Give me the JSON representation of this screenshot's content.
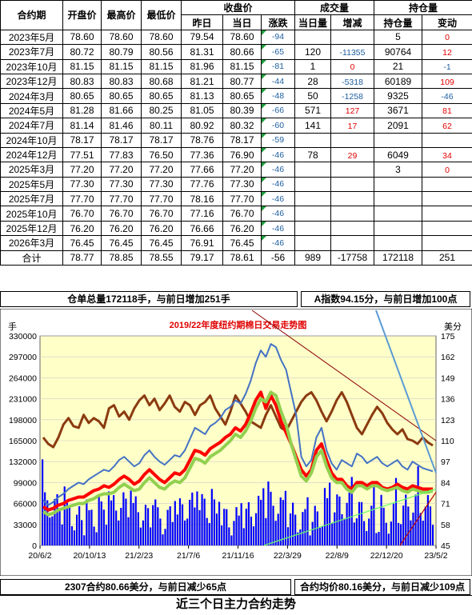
{
  "table": {
    "header": {
      "contract": "合约期",
      "open": "开盘价",
      "high": "最高价",
      "low": "最低价",
      "settle_group": "收盘价",
      "prev": "昨日",
      "today": "当日",
      "change": "涨跌",
      "volume_group": "成交量",
      "vol_today": "当日量",
      "vol_chg": "增减",
      "oi_group": "持仓量",
      "oi": "持仓量",
      "oi_chg": "变动"
    },
    "rows": [
      [
        "2023年5月",
        "78.60",
        "78.60",
        "78.60",
        "79.54",
        "78.60",
        "-94",
        "",
        "",
        "5",
        "0"
      ],
      [
        "2023年7月",
        "80.72",
        "80.79",
        "80.56",
        "81.31",
        "80.66",
        "-65",
        "120",
        "-11355",
        "90764",
        "12"
      ],
      [
        "2023年10月",
        "81.15",
        "81.15",
        "81.15",
        "81.96",
        "81.15",
        "-81",
        "1",
        "0",
        "21",
        "-1"
      ],
      [
        "2023年12月",
        "80.83",
        "80.83",
        "80.68",
        "81.21",
        "80.77",
        "-44",
        "28",
        "-5318",
        "60189",
        "109"
      ],
      [
        "2024年3月",
        "80.65",
        "80.65",
        "80.65",
        "81.13",
        "80.65",
        "-48",
        "50",
        "-1258",
        "9325",
        "-46"
      ],
      [
        "2024年5月",
        "81.28",
        "81.66",
        "80.25",
        "81.05",
        "80.39",
        "-66",
        "571",
        "127",
        "3671",
        "81"
      ],
      [
        "2024年7月",
        "81.14",
        "81.46",
        "80.11",
        "80.92",
        "80.32",
        "-60",
        "141",
        "17",
        "2091",
        "62"
      ],
      [
        "2024年10月",
        "78.17",
        "78.17",
        "78.17",
        "78.76",
        "78.17",
        "-59",
        "",
        "",
        "",
        ""
      ],
      [
        "2024年12月",
        "77.51",
        "77.83",
        "76.50",
        "77.36",
        "76.90",
        "-46",
        "78",
        "29",
        "6049",
        "34"
      ],
      [
        "2025年3月",
        "77.20",
        "77.20",
        "77.20",
        "77.66",
        "77.20",
        "-46",
        "",
        "",
        "3",
        "0"
      ],
      [
        "2025年5月",
        "77.30",
        "77.30",
        "77.30",
        "77.76",
        "77.30",
        "-46",
        "",
        "",
        "",
        ""
      ],
      [
        "2025年7月",
        "77.70",
        "77.70",
        "77.70",
        "78.16",
        "77.70",
        "-46",
        "",
        "",
        "",
        ""
      ],
      [
        "2025年10月",
        "76.70",
        "76.70",
        "76.70",
        "77.16",
        "76.70",
        "-46",
        "",
        "",
        "",
        ""
      ],
      [
        "2025年12月",
        "76.20",
        "76.20",
        "76.20",
        "76.66",
        "76.20",
        "-46",
        "",
        "",
        "",
        ""
      ],
      [
        "2026年3月",
        "76.45",
        "76.45",
        "76.45",
        "76.91",
        "76.45",
        "-46",
        "",
        "",
        "",
        ""
      ]
    ],
    "total": [
      "合计",
      "78.77",
      "78.85",
      "78.55",
      "79.17",
      "78.61",
      "-56",
      "989",
      "-17758",
      "172118",
      "251"
    ]
  },
  "summary": {
    "warehouse": "仓单总量172118手，与前日增加251手",
    "index": "A指数94.15分，与前日增加100点"
  },
  "chart_data": {
    "type": "line",
    "title": "2019/22年度纽约期棉日交易走势图",
    "left_unit": "手",
    "right_unit": "美分",
    "left_ticks": [
      0,
      33000,
      66000,
      99000,
      132000,
      165000,
      198000,
      231000,
      264000,
      297000,
      330000
    ],
    "right_ticks": [
      45,
      58,
      71,
      84,
      97,
      110,
      123,
      136,
      149,
      162,
      175
    ],
    "x_labels": [
      "20/6/2",
      "20/10/13",
      "21/2/23",
      "21/7/6",
      "21/11/16",
      "22/3/29",
      "22/8/9",
      "22/12/20",
      "23/5/2"
    ],
    "ylim_left": [
      0,
      330000
    ],
    "ylim_right": [
      45,
      175
    ],
    "background": "#ffffc8",
    "colors": {
      "brown": "#8b3a0f",
      "blue": "#4472c4",
      "red": "#ff0000",
      "green": "#92d050",
      "bars": "#0000ff",
      "title": "#e00000"
    },
    "series": [
      {
        "axis": "right",
        "color": "brown",
        "values": [
          112,
          108,
          106,
          112,
          120,
          124,
          119,
          118,
          126,
          121,
          124,
          122,
          118,
          130,
          132,
          125,
          128,
          123,
          130,
          135,
          138,
          132,
          136,
          129,
          133,
          138,
          131,
          128,
          134,
          132,
          126,
          132,
          134,
          138,
          130,
          125,
          120,
          128,
          138,
          133,
          128,
          122,
          120,
          118,
          126,
          132,
          125,
          118,
          116,
          122,
          128,
          134,
          138,
          140,
          135,
          128,
          122,
          128,
          135,
          140,
          134,
          126,
          118,
          114,
          120,
          126,
          131,
          127,
          121,
          117,
          114,
          117,
          111,
          110,
          108,
          112,
          109,
          107
        ]
      },
      {
        "axis": "right",
        "color": "blue",
        "values": [
          73,
          70,
          72,
          75,
          77,
          80,
          82,
          84,
          83,
          86,
          88,
          90,
          92,
          91,
          94,
          98,
          100,
          97,
          94,
          96,
          101,
          104,
          100,
          97,
          95,
          98,
          101,
          100,
          104,
          111,
          118,
          116,
          114,
          119,
          121,
          124,
          129,
          131,
          135,
          133,
          139,
          147,
          158,
          166,
          162,
          170,
          168,
          160,
          154,
          140,
          126,
          100,
          94,
          98,
          112,
          118,
          104,
          96,
          92,
          98,
          96,
          94,
          102,
          100,
          96,
          98,
          100,
          96,
          94,
          96,
          98,
          94,
          92,
          97,
          95,
          93,
          92,
          91
        ]
      },
      {
        "axis": "right",
        "color": "red",
        "values": [
          69,
          67,
          68,
          70,
          71,
          73,
          74,
          75,
          75,
          77,
          79,
          80,
          82,
          81,
          83,
          86,
          88,
          86,
          83,
          85,
          89,
          92,
          89,
          86,
          84,
          87,
          90,
          89,
          92,
          98,
          104,
          103,
          101,
          105,
          107,
          109,
          112,
          114,
          118,
          116,
          120,
          127,
          135,
          140,
          130,
          138,
          132,
          122,
          115,
          108,
          100,
          92,
          88,
          92,
          104,
          108,
          98,
          90,
          86,
          86,
          82,
          80,
          84,
          84,
          82,
          84,
          84,
          81,
          80,
          81,
          83,
          81,
          80,
          82,
          81,
          80,
          80,
          80
        ]
      },
      {
        "axis": "right",
        "color": "green",
        "values": [
          66,
          64,
          65,
          67,
          68,
          69,
          70,
          71,
          71,
          73,
          74,
          76,
          77,
          77,
          78,
          81,
          83,
          81,
          79,
          80,
          84,
          87,
          84,
          81,
          80,
          83,
          85,
          84,
          87,
          93,
          99,
          98,
          96,
          100,
          102,
          104,
          107,
          110,
          114,
          112,
          116,
          122,
          130,
          136,
          134,
          140,
          138,
          128,
          120,
          108,
          98,
          88,
          85,
          90,
          100,
          104,
          94,
          87,
          84,
          84,
          80,
          78,
          82,
          82,
          80,
          82,
          82,
          80,
          79,
          80,
          81,
          79,
          78,
          80,
          79,
          78,
          78,
          79
        ]
      }
    ]
  },
  "footer": {
    "left": "2307合约80.66美分，与前日减少65点",
    "right": "合约均价80.16美分，与前日减少109点"
  },
  "caption": "近三个日主力合约走势"
}
